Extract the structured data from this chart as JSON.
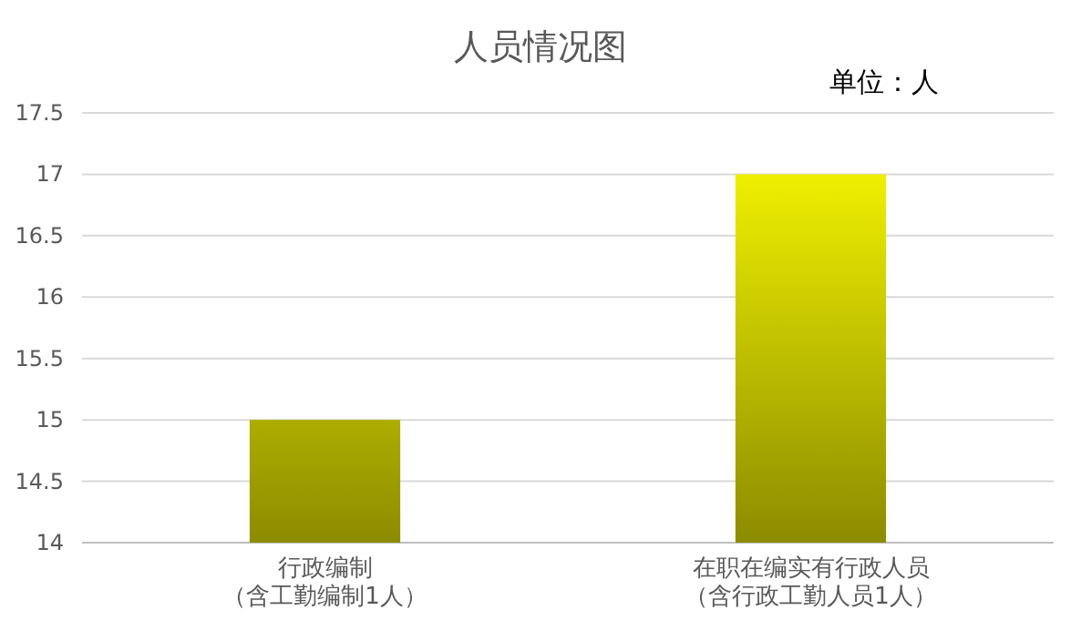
{
  "chart_data": {
    "type": "bar",
    "title": "人员情况图",
    "annotations": [
      "单位：人"
    ],
    "categories": [
      "行政编制（含工勤编制1人）",
      "在职在编实有行政人员（含行政工勤人员1人）"
    ],
    "values": [
      15,
      17
    ],
    "color": "#ffff00",
    "ylim": [
      14,
      17.5
    ],
    "yticks": [
      14,
      14.5,
      15,
      15.5,
      16,
      16.5,
      17,
      17.5
    ],
    "grid": "y"
  }
}
